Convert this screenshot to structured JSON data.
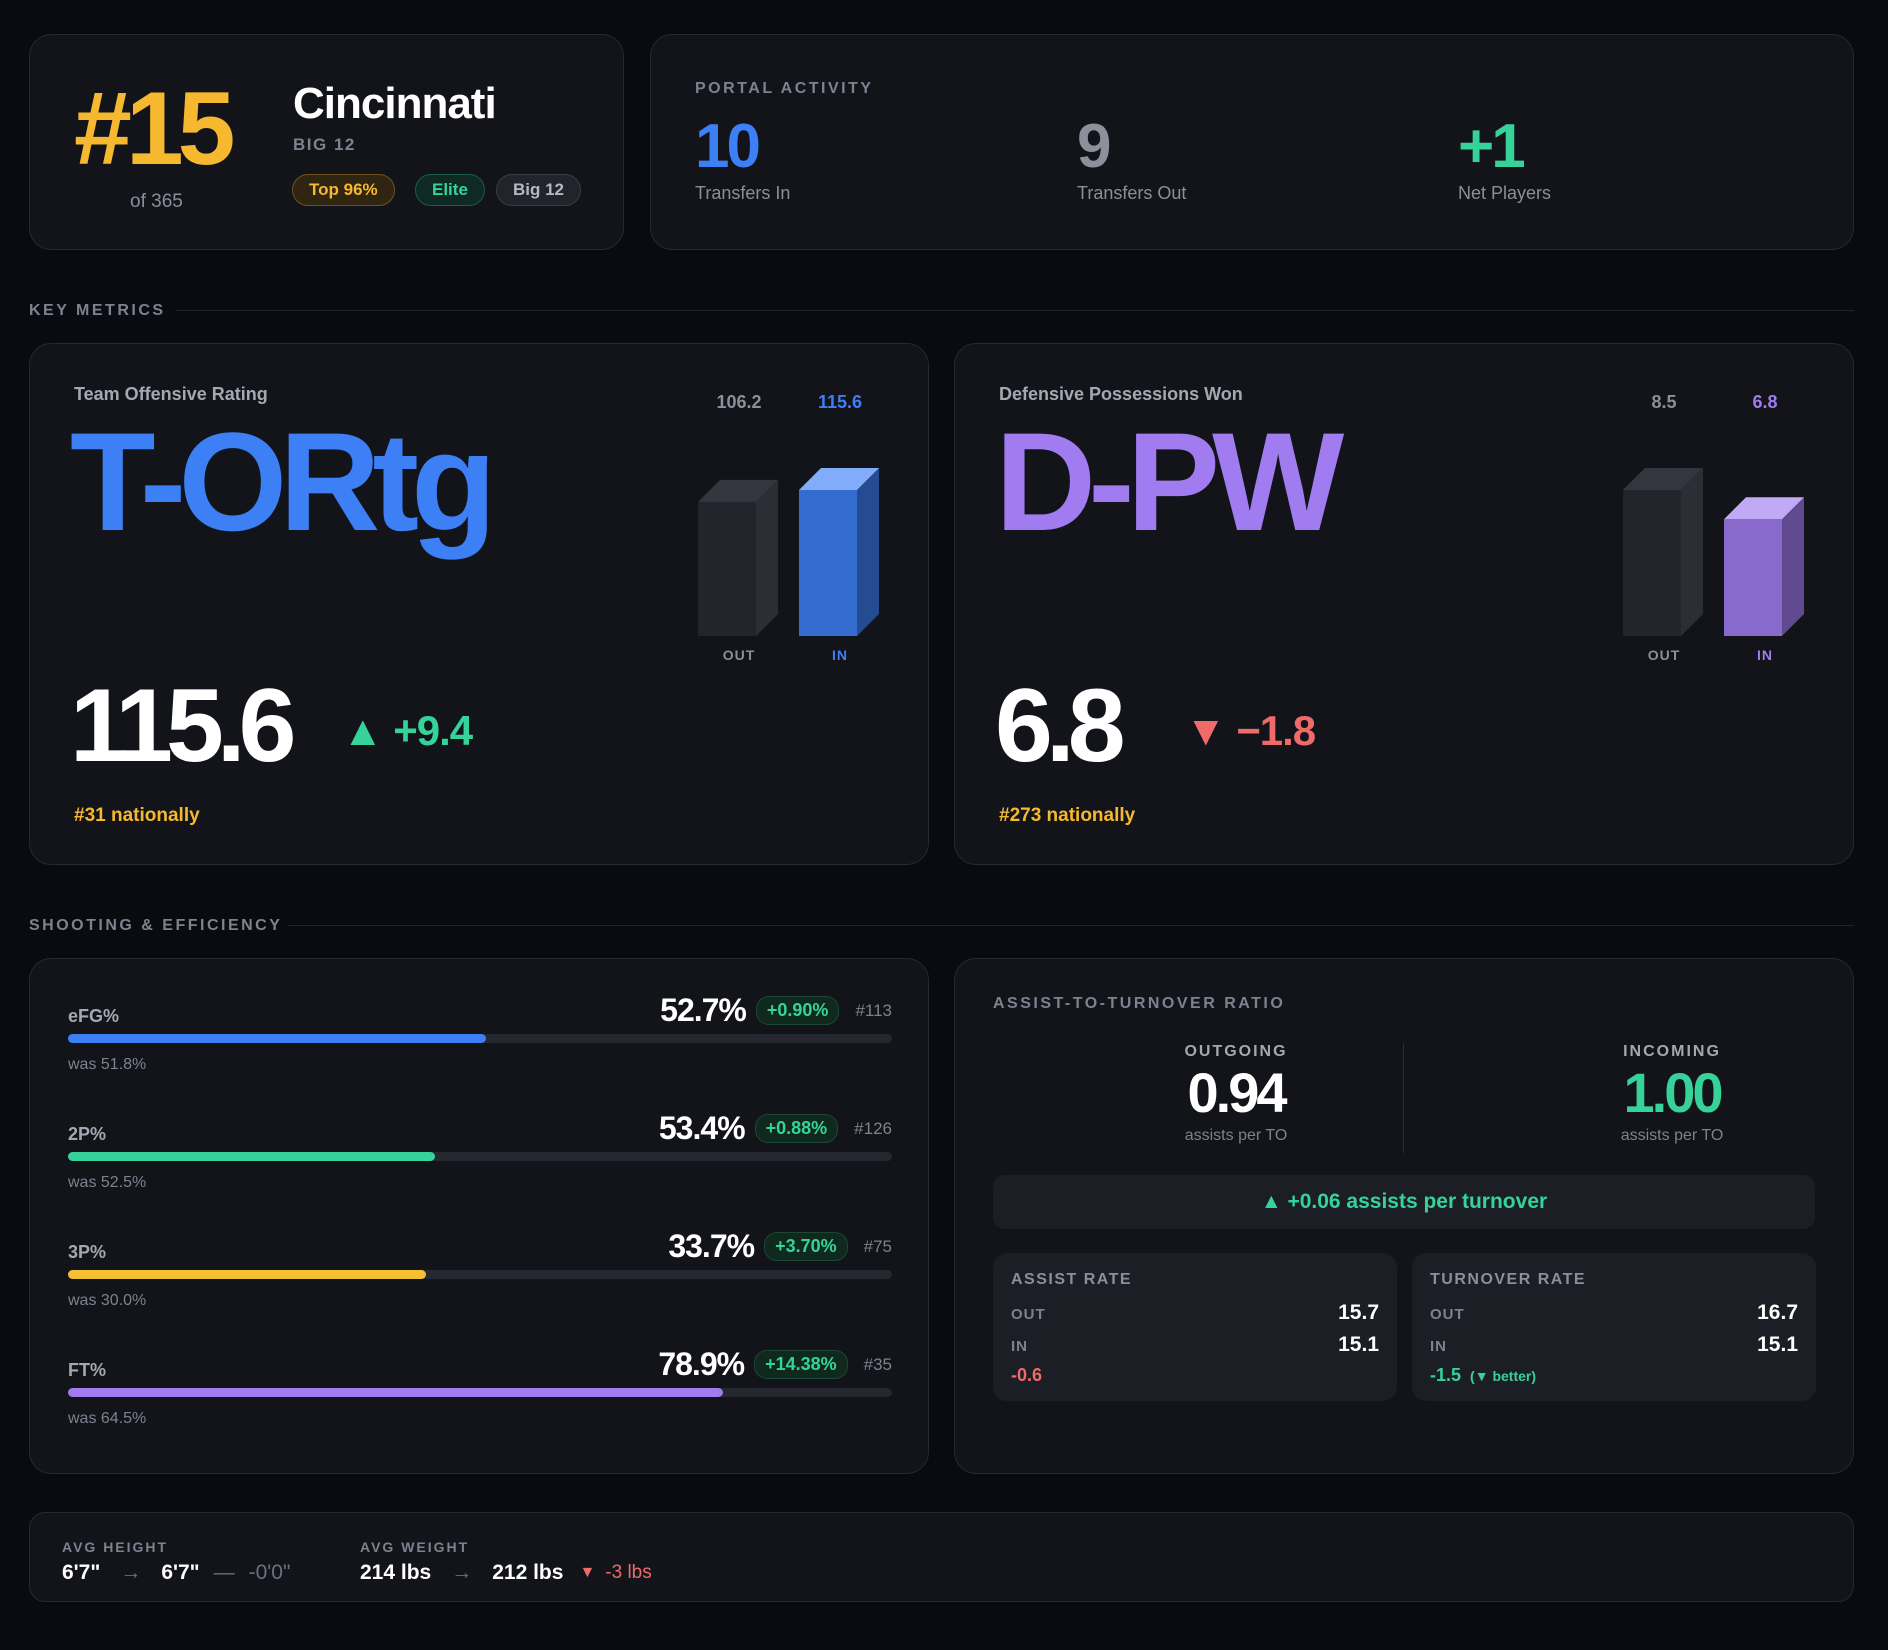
{
  "team": {
    "rank": "#15",
    "rank_of": "of 365",
    "name": "Cincinnati",
    "conference": "BIG 12",
    "pills": [
      "Top 96%",
      "Elite",
      "Big 12"
    ]
  },
  "portal": {
    "label": "PORTAL ACTIVITY",
    "stats": [
      {
        "value": "10",
        "label": "Transfers In",
        "color": "#3d7ff5"
      },
      {
        "value": "9",
        "label": "Transfers Out",
        "color": "#8d909a"
      },
      {
        "value": "+1",
        "label": "Net Players",
        "color": "#35d39a"
      }
    ]
  },
  "sections": {
    "key_metrics": "KEY METRICS",
    "shooting": "SHOOTING & EFFICIENCY"
  },
  "metrics": [
    {
      "title": "Team Offensive Rating",
      "abbr": "T-ORtg",
      "abbr_color": "#3d7ff5",
      "value": "115.6",
      "delta": "+9.4",
      "delta_dir": "up",
      "delta_color": "#35d39a",
      "rank": "#31 nationally",
      "out_value": "106.2",
      "in_value": "115.6",
      "out_num": 106.2,
      "in_num": 115.6,
      "out_label": "OUT",
      "in_label": "IN",
      "accent": "#3d7ff5"
    },
    {
      "title": "Defensive Possessions Won",
      "abbr": "D-PW",
      "abbr_color": "#a07cf0",
      "value": "6.8",
      "delta": "−1.8",
      "delta_dir": "down",
      "delta_color": "#f06a6a",
      "rank": "#273 nationally",
      "out_value": "8.5",
      "in_value": "6.8",
      "out_num": 8.5,
      "in_num": 6.8,
      "out_label": "OUT",
      "in_label": "IN",
      "accent": "#a07cf0"
    }
  ],
  "shooting": [
    {
      "name": "eFG%",
      "value": "52.7%",
      "change": "+0.90%",
      "rank": "#113",
      "was": "was 51.8%",
      "fill_pct": 50.7,
      "color": "#3d7ff5"
    },
    {
      "name": "2P%",
      "value": "53.4%",
      "change": "+0.88%",
      "rank": "#126",
      "was": "was 52.5%",
      "fill_pct": 44.5,
      "color": "#35d39a"
    },
    {
      "name": "3P%",
      "value": "33.7%",
      "change": "+3.70%",
      "rank": "#75",
      "was": "was 30.0%",
      "fill_pct": 43.5,
      "color": "#f5c033"
    },
    {
      "name": "FT%",
      "value": "78.9%",
      "change": "+14.38%",
      "rank": "#35",
      "was": "was 64.5%",
      "fill_pct": 79.5,
      "color": "#a07cf0"
    }
  ],
  "ratio": {
    "label": "ASSIST-TO-TURNOVER RATIO",
    "outgoing": {
      "caption": "OUTGOING",
      "value": "0.94",
      "sub": "assists per TO"
    },
    "incoming": {
      "caption": "INCOMING",
      "value": "1.00",
      "sub": "assists per TO"
    },
    "banner": "▲ +0.06 assists per turnover",
    "assist_rate": {
      "title": "ASSIST RATE",
      "out_label": "OUT",
      "out": "15.7",
      "in_label": "IN",
      "in": "15.1",
      "diff": "-0.6"
    },
    "turnover_rate": {
      "title": "TURNOVER RATE",
      "out_label": "OUT",
      "out": "16.7",
      "in_label": "IN",
      "in": "15.1",
      "diff": "-1.5",
      "note": "(▼ better)"
    }
  },
  "physical": {
    "height": {
      "caption": "AVG HEIGHT",
      "from": "6'7\"",
      "arrow": "→",
      "to": "6'7\"",
      "dash": "—",
      "diff": "-0'0\""
    },
    "weight": {
      "caption": "AVG WEIGHT",
      "from": "214 lbs",
      "arrow": "→",
      "to": "212 lbs",
      "diff": "-3 lbs"
    }
  },
  "colors": {
    "gold": "#f5b82e",
    "green": "#35d39a",
    "red": "#f06a6a",
    "blue": "#3d7ff5",
    "purple": "#a07cf0"
  }
}
